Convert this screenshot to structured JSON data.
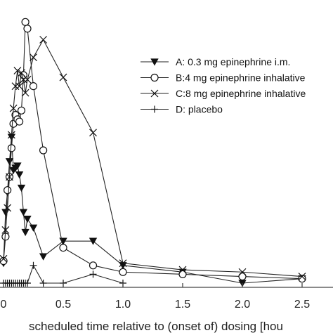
{
  "chart_data": {
    "type": "line",
    "xlabel": "scheduled time relative to (onset of) dosing [hou",
    "ylabel": "",
    "xlim": [
      -0.02,
      2.72
    ],
    "ylim": [
      -0.4,
      12.4
    ],
    "x_ticks": [
      0,
      0.5,
      1.0,
      1.5,
      2.0,
      2.5
    ],
    "x_tick_labels": [
      "0",
      "0.5",
      "1.0",
      "1.5",
      "2.0",
      "2.5"
    ],
    "legend_position": "top-right",
    "series": [
      {
        "name": "A: 0.3 mg epinephrine i.m.",
        "marker": "triangle-down",
        "x": [
          0,
          0.017,
          0.033,
          0.05,
          0.067,
          0.083,
          0.1,
          0.117,
          0.133,
          0.15,
          0.167,
          0.183,
          0.2,
          0.25,
          0.333,
          0.5,
          0.75,
          1.0,
          1.5,
          2.0,
          2.5
        ],
        "y": [
          0.9,
          3.2,
          4.1,
          5.5,
          6.6,
          5.1,
          5.2,
          5.3,
          4.9,
          4.3,
          3.2,
          2.3,
          2.9,
          2.5,
          1.2,
          1.9,
          1.9,
          0.8,
          0.5,
          0.0,
          0.2
        ]
      },
      {
        "name": "B:4 mg epinephrine inhalative",
        "marker": "circle-open",
        "x": [
          0,
          0.017,
          0.033,
          0.05,
          0.067,
          0.083,
          0.1,
          0.117,
          0.133,
          0.15,
          0.167,
          0.183,
          0.2,
          0.25,
          0.333,
          0.5,
          0.75,
          1.0,
          1.5,
          2.0,
          2.5
        ],
        "y": [
          1.0,
          2.1,
          4.2,
          4.8,
          6.1,
          7.2,
          7.6,
          7.4,
          7.3,
          7.8,
          9.4,
          11.8,
          11.5,
          8.9,
          6.0,
          1.6,
          0.8,
          0.5,
          0.4,
          0.3,
          0.2
        ]
      },
      {
        "name": "C:8 mg epinephrine inhalative",
        "marker": "x",
        "x": [
          0,
          0.017,
          0.033,
          0.05,
          0.067,
          0.083,
          0.1,
          0.117,
          0.133,
          0.15,
          0.167,
          0.183,
          0.2,
          0.25,
          0.333,
          0.5,
          0.75,
          1.0,
          1.5,
          2.0,
          2.5
        ],
        "y": [
          1.1,
          2.4,
          3.4,
          4.8,
          6.7,
          7.9,
          8.9,
          9.6,
          8.9,
          9.5,
          9.2,
          8.6,
          9.2,
          10.2,
          11.0,
          9.3,
          6.8,
          0.9,
          0.6,
          0.5,
          0.3
        ]
      },
      {
        "name": "D: placebo",
        "marker": "plus",
        "x": [
          0,
          0.017,
          0.033,
          0.05,
          0.067,
          0.083,
          0.1,
          0.117,
          0.133,
          0.15,
          0.167,
          0.183,
          0.2,
          0.25,
          0.333,
          0.5,
          0.75,
          1.0
        ],
        "y": [
          0.0,
          0.0,
          0.0,
          0.0,
          0.0,
          0.0,
          0.0,
          0.0,
          0.0,
          0.0,
          0.0,
          0.0,
          0.0,
          0.8,
          0.0,
          0.0,
          0.4,
          0.0
        ]
      }
    ]
  }
}
